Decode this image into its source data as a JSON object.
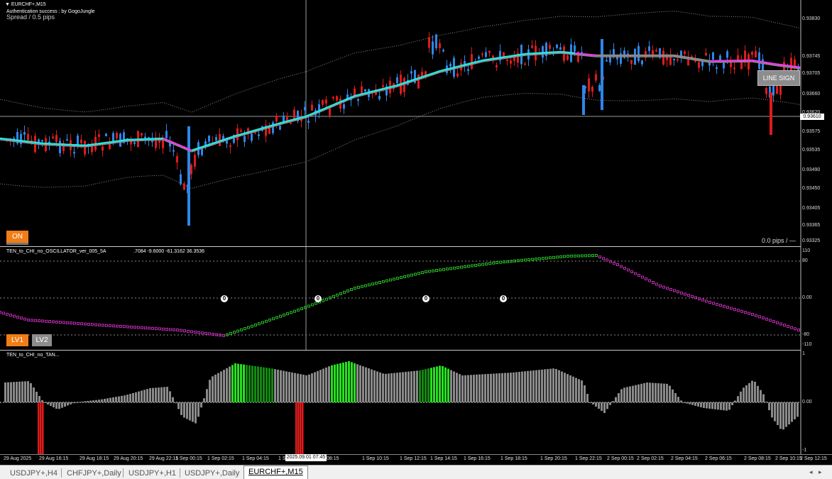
{
  "chart_header": {
    "symbol_label": "▼ EURCHF+,M15",
    "auth_text": "Authentication success : by GogoJungle",
    "spread_text": "Spread / 0.5 pips",
    "pips_text": "0.0 pips / —"
  },
  "buttons": {
    "on": "ON",
    "lv1": "LV1",
    "lv2": "LV2",
    "line_sign": "LINE SIGN"
  },
  "colors": {
    "bull": "#2f86e8",
    "bear": "#e01b1b",
    "ma_up": "#27e6e0",
    "ma_down": "#e83de6",
    "grey": "#8a8a8a",
    "green": "#27e020",
    "dark_green": "#148a12",
    "osc_green": "#2fd02a",
    "osc_magenta": "#d232c8"
  },
  "price_axis": [
    "0.93830",
    "0.93745",
    "0.93705",
    "0.93660",
    "0.93620",
    "0.93575",
    "0.93535",
    "0.93490",
    "0.93450",
    "0.93405",
    "0.93365",
    "0.93325"
  ],
  "current_price": "0.93610",
  "oscillator": {
    "title": "TEN_to_CHI_no_OSCILLATOR_ver_005_5A",
    "values_text": ".7084 -9.6000 -61.3162 36.3536",
    "axis": [
      "110",
      "80",
      "0.00",
      "-80",
      "-110"
    ]
  },
  "histogram": {
    "title": "TEN_to_CHI_no_TAN...",
    "axis": [
      "1",
      "0.00",
      "-1"
    ]
  },
  "time_axis": [
    "29 Aug 2025",
    "29 Aug 16:15",
    "29 Aug 18:15",
    "29 Aug 20:15",
    "29 Aug 22:15",
    "1 Sep 00:15",
    "1 Sep 02:15",
    "1 Sep 04:15",
    "1 S",
    "08:15",
    "1 Sep 10:15",
    "1 Sep 12:15",
    "1 Sep 14:15",
    "1 Sep 16:15",
    "1 Sep 18:15",
    "1 Sep 20:15",
    "1 Sep 22:15",
    "2 Sep 00:15",
    "2 Sep 02:15",
    "2 Sep 04:15",
    "2 Sep 06:15",
    "2 Sep 08:15",
    "2 Sep 10:15",
    "2 Sep 12:15"
  ],
  "crosshair_time": "2025.09.01 07:45",
  "tabs": [
    "USDJPY+,H4",
    "CHFJPY+,Daily",
    "USDJPY+,H1",
    "USDJPY+,Daily",
    "EURCHF+,M15"
  ],
  "active_tab": "EURCHF+,M15",
  "osc_markers": [
    "0",
    "0",
    "0",
    "0"
  ]
}
